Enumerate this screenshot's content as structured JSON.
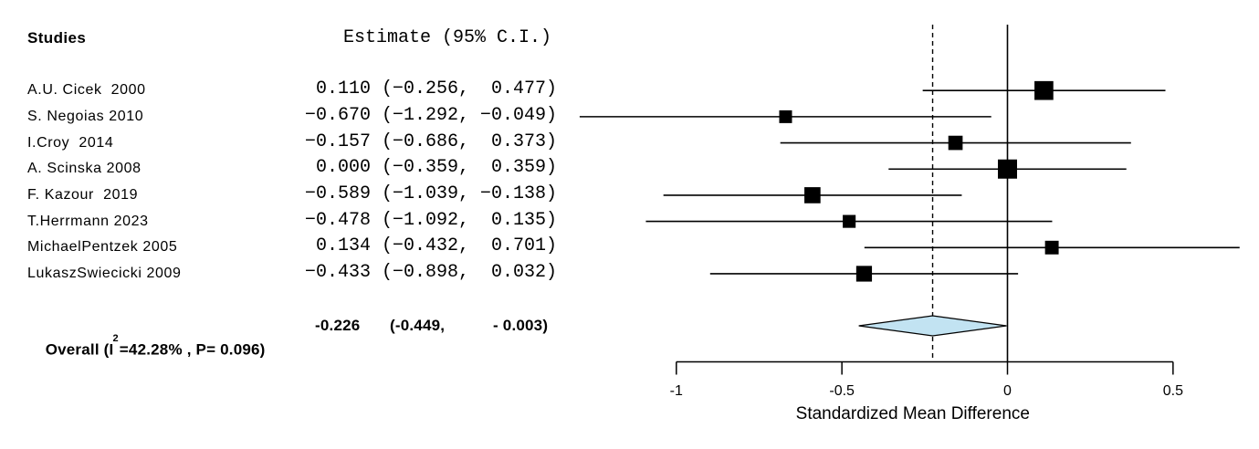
{
  "header": {
    "studies_label": "Studies",
    "estimate_label": "Estimate (95% C.I.)"
  },
  "chart_data": {
    "type": "forest",
    "title": "",
    "xlabel": "Standardized Mean Difference",
    "x_ticks": [
      -1,
      -0.5,
      0,
      0.5
    ],
    "x_tick_labels": [
      "-1",
      "-0.5",
      "0",
      "0.5"
    ],
    "xlim": [
      -1,
      0.5
    ],
    "zero_line": 0,
    "grid": false,
    "studies": [
      {
        "name": "A.U. Cicek  2000",
        "estimate": 0.11,
        "ci_lower": -0.256,
        "ci_upper": 0.477,
        "estimate_text": " 0.110 (−0.256,  0.477)"
      },
      {
        "name": "S. Negoias 2010",
        "estimate": -0.67,
        "ci_lower": -1.292,
        "ci_upper": -0.049,
        "estimate_text": "−0.670 (−1.292, −0.049)"
      },
      {
        "name": "I.Croy  2014",
        "estimate": -0.157,
        "ci_lower": -0.686,
        "ci_upper": 0.373,
        "estimate_text": "−0.157 (−0.686,  0.373)"
      },
      {
        "name": "A. Scinska 2008",
        "estimate": 0.0,
        "ci_lower": -0.359,
        "ci_upper": 0.359,
        "estimate_text": " 0.000 (−0.359,  0.359)"
      },
      {
        "name": "F. Kazour  2019",
        "estimate": -0.589,
        "ci_lower": -1.039,
        "ci_upper": -0.138,
        "estimate_text": "−0.589 (−1.039, −0.138)"
      },
      {
        "name": "T.Herrmann 2023",
        "estimate": -0.478,
        "ci_lower": -1.092,
        "ci_upper": 0.135,
        "estimate_text": "−0.478 (−1.092,  0.135)"
      },
      {
        "name": "MichaelPentzek 2005",
        "estimate": 0.134,
        "ci_lower": -0.432,
        "ci_upper": 0.701,
        "estimate_text": " 0.134 (−0.432,  0.701)"
      },
      {
        "name": "LukaszSwiecicki 2009",
        "estimate": -0.433,
        "ci_lower": -0.898,
        "ci_upper": 0.032,
        "estimate_text": "−0.433 (−0.898,  0.032)"
      }
    ],
    "overall": {
      "label_prefix": "Overall (I",
      "label_sup": "2",
      "label_suffix": "=42.28% , P= 0.096)",
      "i_squared": "42.28%",
      "p_value": "0.096",
      "estimate": -0.226,
      "ci_lower": -0.449,
      "ci_upper": -0.003,
      "estimate_text": "-0.226",
      "ci_lower_text": "(-0.449,",
      "ci_upper_text": "- 0.003)",
      "diamond_fill": "#c2e3f2",
      "diamond_stroke": "#000000"
    },
    "colors": {
      "marker": "#000000",
      "line": "#000000",
      "axis": "#000000"
    },
    "legend": null
  }
}
